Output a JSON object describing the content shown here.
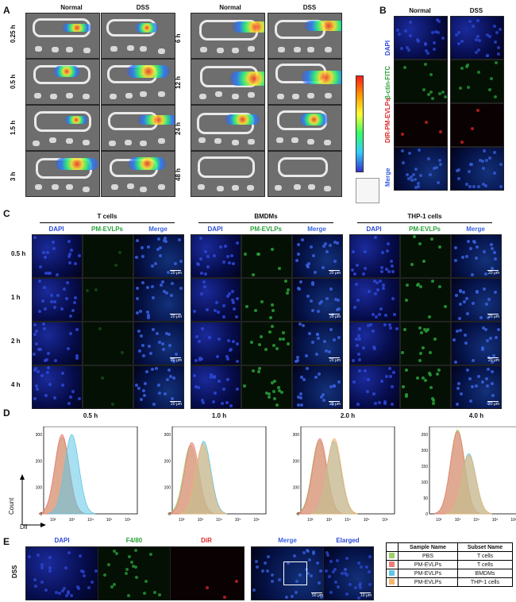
{
  "panelA": {
    "label": "A",
    "col_headers_left": [
      "Normal",
      "DSS"
    ],
    "col_headers_right": [
      "Normal",
      "DSS"
    ],
    "rows_left": [
      "0.25 h",
      "0.5 h",
      "1.5 h",
      "3 h"
    ],
    "rows_right": [
      "6 h",
      "12 h",
      "24 h",
      "48 h"
    ]
  },
  "panelB": {
    "label": "B",
    "col_headers": [
      "Normal",
      "DSS"
    ],
    "row_labels": [
      "DAPI",
      "β-ctin-FITC",
      "DIR-PM-EVLPs",
      "Merge"
    ]
  },
  "panelC": {
    "label": "C",
    "groups": [
      "T cells",
      "BMDMs",
      "THP-1 cells"
    ],
    "channels": [
      "DAPI",
      "PM-EVLPs",
      "Merge"
    ],
    "rows": [
      "0.5 h",
      "1 h",
      "2 h",
      "4 h"
    ],
    "scale_bar": "20 μm"
  },
  "panelD": {
    "label": "D",
    "titles": [
      "0.5 h",
      "1.0 h",
      "2.0 h",
      "4.0 h"
    ],
    "y_axis_label": "Count",
    "x_axis_label": "DiI",
    "x_ticks": [
      "10²",
      "10³",
      "10⁴",
      "10⁵",
      "10⁶"
    ]
  },
  "panelE": {
    "label": "E",
    "row_label": "DSS",
    "channels": [
      "DAPI",
      "F4/80",
      "DiR",
      "Merge",
      "Elarged"
    ],
    "scale_bars": [
      "50 μm",
      "10 μm"
    ],
    "legend": {
      "headers": [
        "Sample Name",
        "Subset Name"
      ],
      "rows": [
        {
          "sample": "PBS",
          "subset": "T cells",
          "color": "#9fcf6a"
        },
        {
          "sample": "PM-EVLPs",
          "subset": "T cells",
          "color": "#f07a7a"
        },
        {
          "sample": "PM-EVLPs",
          "subset": "BMDMs",
          "color": "#5fc6e6"
        },
        {
          "sample": "PM-EVLPs",
          "subset": "THP-1 cells",
          "color": "#f5b56a"
        }
      ]
    }
  },
  "chart_data": [
    {
      "type": "area",
      "title": "0.5 h",
      "xlabel": "DiI",
      "ylabel": "Count",
      "xscale": "log",
      "yticks": [
        0,
        100,
        200,
        300
      ],
      "series": [
        {
          "name": "PBS T cells",
          "peak_x": 300,
          "peak_y": 290
        },
        {
          "name": "PM-EVLPs T cells",
          "peak_x": 300,
          "peak_y": 300
        },
        {
          "name": "PM-EVLPs BMDMs",
          "peak_x": 1000,
          "peak_y": 300
        }
      ]
    },
    {
      "type": "area",
      "title": "1.0 h",
      "xlabel": "DiI",
      "ylabel": "Count",
      "xscale": "log",
      "yticks": [
        0,
        100,
        200,
        300
      ],
      "series": [
        {
          "name": "PBS T cells",
          "peak_x": 300,
          "peak_y": 260
        },
        {
          "name": "PM-EVLPs T cells",
          "peak_x": 350,
          "peak_y": 270
        },
        {
          "name": "PM-EVLPs BMDMs",
          "peak_x": 1500,
          "peak_y": 275
        },
        {
          "name": "PM-EVLPs THP-1 cells",
          "peak_x": 1400,
          "peak_y": 265
        }
      ]
    },
    {
      "type": "area",
      "title": "2.0 h",
      "xlabel": "DiI",
      "ylabel": "Count",
      "xscale": "log",
      "yticks": [
        0,
        100,
        200,
        300
      ],
      "series": [
        {
          "name": "PBS T cells",
          "peak_x": 300,
          "peak_y": 280
        },
        {
          "name": "PM-EVLPs T cells",
          "peak_x": 330,
          "peak_y": 285
        },
        {
          "name": "PM-EVLPs BMDMs",
          "peak_x": 1800,
          "peak_y": 275
        },
        {
          "name": "PM-EVLPs THP-1 cells",
          "peak_x": 1900,
          "peak_y": 285
        }
      ]
    },
    {
      "type": "area",
      "title": "4.0 h",
      "xlabel": "DiI",
      "ylabel": "Count",
      "xscale": "log",
      "yticks": [
        0,
        50,
        100,
        150,
        200,
        250
      ],
      "series": [
        {
          "name": "PBS T cells",
          "peak_x": 1000,
          "peak_y": 265
        },
        {
          "name": "PM-EVLPs T cells",
          "peak_x": 1000,
          "peak_y": 260
        },
        {
          "name": "PM-EVLPs BMDMs",
          "peak_x": 4000,
          "peak_y": 190
        },
        {
          "name": "PM-EVLPs THP-1 cells",
          "peak_x": 4000,
          "peak_y": 185
        }
      ]
    }
  ]
}
